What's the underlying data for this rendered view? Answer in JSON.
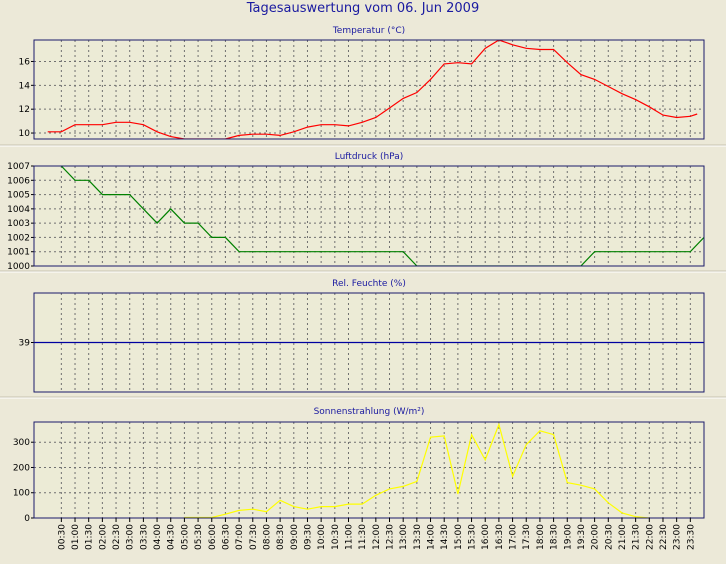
{
  "title": "Tagesauswertung vom 06. Jun 2009",
  "chart_data": [
    {
      "type": "line",
      "title": "Temperatur (°C)",
      "color": "#ff0000",
      "ylim": [
        9.5,
        17.8
      ],
      "yticks": [
        10,
        12,
        14,
        16
      ],
      "grid": true,
      "x": [
        0,
        0.5,
        1,
        1.5,
        2,
        2.5,
        3,
        3.5,
        4,
        4.5,
        5,
        5.5,
        6,
        6.5,
        7,
        7.5,
        8,
        8.5,
        9,
        9.5,
        10,
        10.5,
        11,
        11.5,
        12,
        12.5,
        13,
        13.5,
        14,
        14.5,
        15,
        15.5,
        16,
        16.5,
        17,
        17.5,
        18,
        18.5,
        19,
        19.5,
        20,
        20.5,
        21,
        21.5,
        22,
        22.5,
        23,
        23.5
      ],
      "values": [
        10.1,
        10.1,
        10.7,
        10.7,
        10.7,
        10.9,
        10.9,
        10.7,
        10.1,
        9.7,
        9.5,
        9.5,
        9.5,
        9.5,
        9.8,
        9.9,
        9.9,
        9.8,
        10.1,
        10.5,
        10.7,
        10.7,
        10.6,
        10.9,
        11.3,
        12.1,
        12.9,
        13.4,
        14.5,
        15.8,
        15.9,
        15.8,
        17.1,
        17.8,
        17.4,
        17.1,
        17.0,
        17.0,
        15.9,
        14.9,
        14.5,
        13.9,
        13.3,
        12.8,
        12.2,
        11.5,
        11.3,
        11.4
      ],
      "x_end": 23.75,
      "y_end": 11.6
    },
    {
      "type": "line",
      "title": "Luftdruck (hPa)",
      "color": "#008000",
      "ylim": [
        1000,
        1007
      ],
      "yticks": [
        1000,
        1001,
        1002,
        1003,
        1004,
        1005,
        1006,
        1007
      ],
      "grid": true,
      "points": [
        [
          0.5,
          1007
        ],
        [
          1,
          1006
        ],
        [
          1.5,
          1006
        ],
        [
          2,
          1005
        ],
        [
          2.5,
          1005
        ],
        [
          3,
          1005
        ],
        [
          3.5,
          1004
        ],
        [
          4,
          1003
        ],
        [
          4.5,
          1004
        ],
        [
          5,
          1003
        ],
        [
          5.5,
          1003
        ],
        [
          6,
          1002
        ],
        [
          6.5,
          1002
        ],
        [
          7,
          1001
        ],
        [
          13,
          1001
        ],
        [
          13.5,
          1000
        ],
        [
          19.5,
          1000
        ],
        [
          20,
          1001
        ],
        [
          23.5,
          1001
        ],
        [
          24,
          1002
        ]
      ]
    },
    {
      "type": "line",
      "title": "Rel. Feuchte (%)",
      "color": "#0000a0",
      "ylim": [
        36,
        42
      ],
      "yticks": [
        39
      ],
      "grid": true,
      "points": [
        [
          -0.5,
          39
        ],
        [
          24,
          39
        ]
      ]
    },
    {
      "type": "line",
      "title": "Sonnenstrahlung (W/m²)",
      "color": "#ffff00",
      "ylim": [
        0,
        380
      ],
      "yticks": [
        0,
        100,
        200,
        300
      ],
      "grid": true,
      "points": [
        [
          5,
          2
        ],
        [
          5.5,
          2
        ],
        [
          6,
          2
        ],
        [
          6.5,
          15
        ],
        [
          7,
          30
        ],
        [
          7.5,
          35
        ],
        [
          8,
          25
        ],
        [
          8.5,
          70
        ],
        [
          9,
          45
        ],
        [
          9.5,
          35
        ],
        [
          10,
          45
        ],
        [
          10.5,
          45
        ],
        [
          11,
          55
        ],
        [
          11.5,
          55
        ],
        [
          12,
          90
        ],
        [
          12.5,
          115
        ],
        [
          13,
          125
        ],
        [
          13.5,
          145
        ],
        [
          14,
          320
        ],
        [
          14.5,
          325
        ],
        [
          15,
          95
        ],
        [
          15.5,
          330
        ],
        [
          16,
          230
        ],
        [
          16.5,
          370
        ],
        [
          17,
          165
        ],
        [
          17.5,
          290
        ],
        [
          18,
          345
        ],
        [
          18.5,
          330
        ],
        [
          19,
          140
        ],
        [
          19.5,
          130
        ],
        [
          20,
          115
        ],
        [
          20.5,
          60
        ],
        [
          21,
          20
        ],
        [
          21.5,
          5
        ],
        [
          22,
          0
        ]
      ]
    }
  ],
  "x_labels": [
    "00:30",
    "01:00",
    "01:30",
    "02:00",
    "02:30",
    "03:00",
    "03:30",
    "04:00",
    "04:30",
    "05:00",
    "05:30",
    "06:00",
    "06:30",
    "07:00",
    "07:30",
    "08:00",
    "08:30",
    "09:00",
    "09:30",
    "10:00",
    "10:30",
    "11:00",
    "11:30",
    "12:00",
    "12:30",
    "13:00",
    "13:30",
    "14:00",
    "14:30",
    "15:00",
    "15:30",
    "16:00",
    "16:30",
    "17:00",
    "17:30",
    "18:00",
    "18:30",
    "19:00",
    "19:30",
    "20:00",
    "20:30",
    "21:00",
    "21:30",
    "22:00",
    "22:30",
    "23:00",
    "23:30"
  ],
  "x_label_values": [
    0.5,
    1,
    1.5,
    2,
    2.5,
    3,
    3.5,
    4,
    4.5,
    5,
    5.5,
    6,
    6.5,
    7,
    7.5,
    8,
    8.5,
    9,
    9.5,
    10,
    10.5,
    11,
    11.5,
    12,
    12.5,
    13,
    13.5,
    14,
    14.5,
    15,
    15.5,
    16,
    16.5,
    17,
    17.5,
    18,
    18.5,
    19,
    19.5,
    20,
    20.5,
    21,
    21.5,
    22,
    22.5,
    23,
    23.5
  ]
}
